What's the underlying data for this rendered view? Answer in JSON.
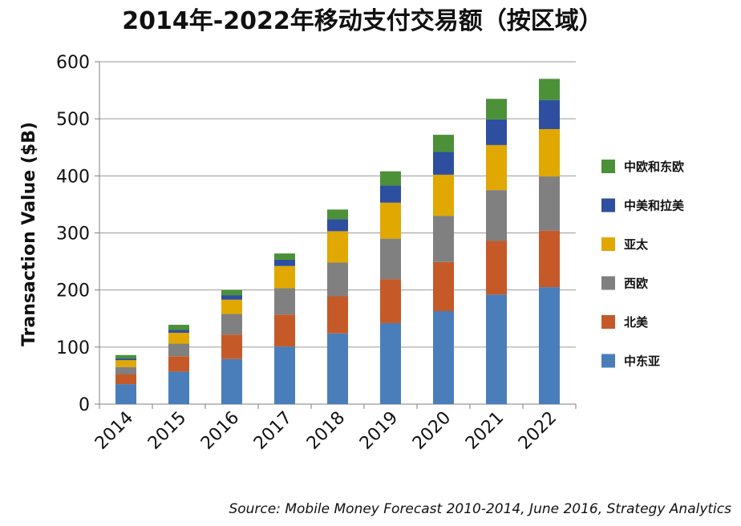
{
  "chart_data": {
    "type": "bar",
    "stacked": true,
    "title": "2014年-2022年移动支付交易额（按区域）",
    "xlabel": "",
    "ylabel": "Transaction Value ($B)",
    "ylim": [
      0,
      600
    ],
    "yticks": [
      0,
      100,
      200,
      300,
      400,
      500,
      600
    ],
    "grid": true,
    "legend_position": "right",
    "categories": [
      "2014",
      "2015",
      "2016",
      "2017",
      "2018",
      "2019",
      "2020",
      "2021",
      "2022"
    ],
    "series": [
      {
        "name": "中东亚",
        "color": "#4a7ebb",
        "values": [
          35,
          57,
          79,
          101,
          124,
          142,
          163,
          192,
          205
        ]
      },
      {
        "name": "北美",
        "color": "#c55a28",
        "values": [
          17,
          27,
          43,
          56,
          65,
          77,
          86,
          94,
          99
        ]
      },
      {
        "name": "西欧",
        "color": "#808080",
        "values": [
          13,
          22,
          36,
          46,
          59,
          71,
          81,
          89,
          95
        ]
      },
      {
        "name": "亚太",
        "color": "#e0a800",
        "values": [
          12,
          19,
          25,
          39,
          55,
          63,
          72,
          79,
          83
        ]
      },
      {
        "name": "中美和拉美",
        "color": "#2e4f9f",
        "values": [
          3,
          5,
          8,
          11,
          21,
          30,
          40,
          45,
          51
        ]
      },
      {
        "name": "中欧和东欧",
        "color": "#4c9138",
        "values": [
          6,
          9,
          9,
          11,
          17,
          25,
          30,
          36,
          37
        ]
      }
    ],
    "source": "Source: Mobile Money Forecast 2010-2014, June 2016, Strategy Analytics"
  }
}
